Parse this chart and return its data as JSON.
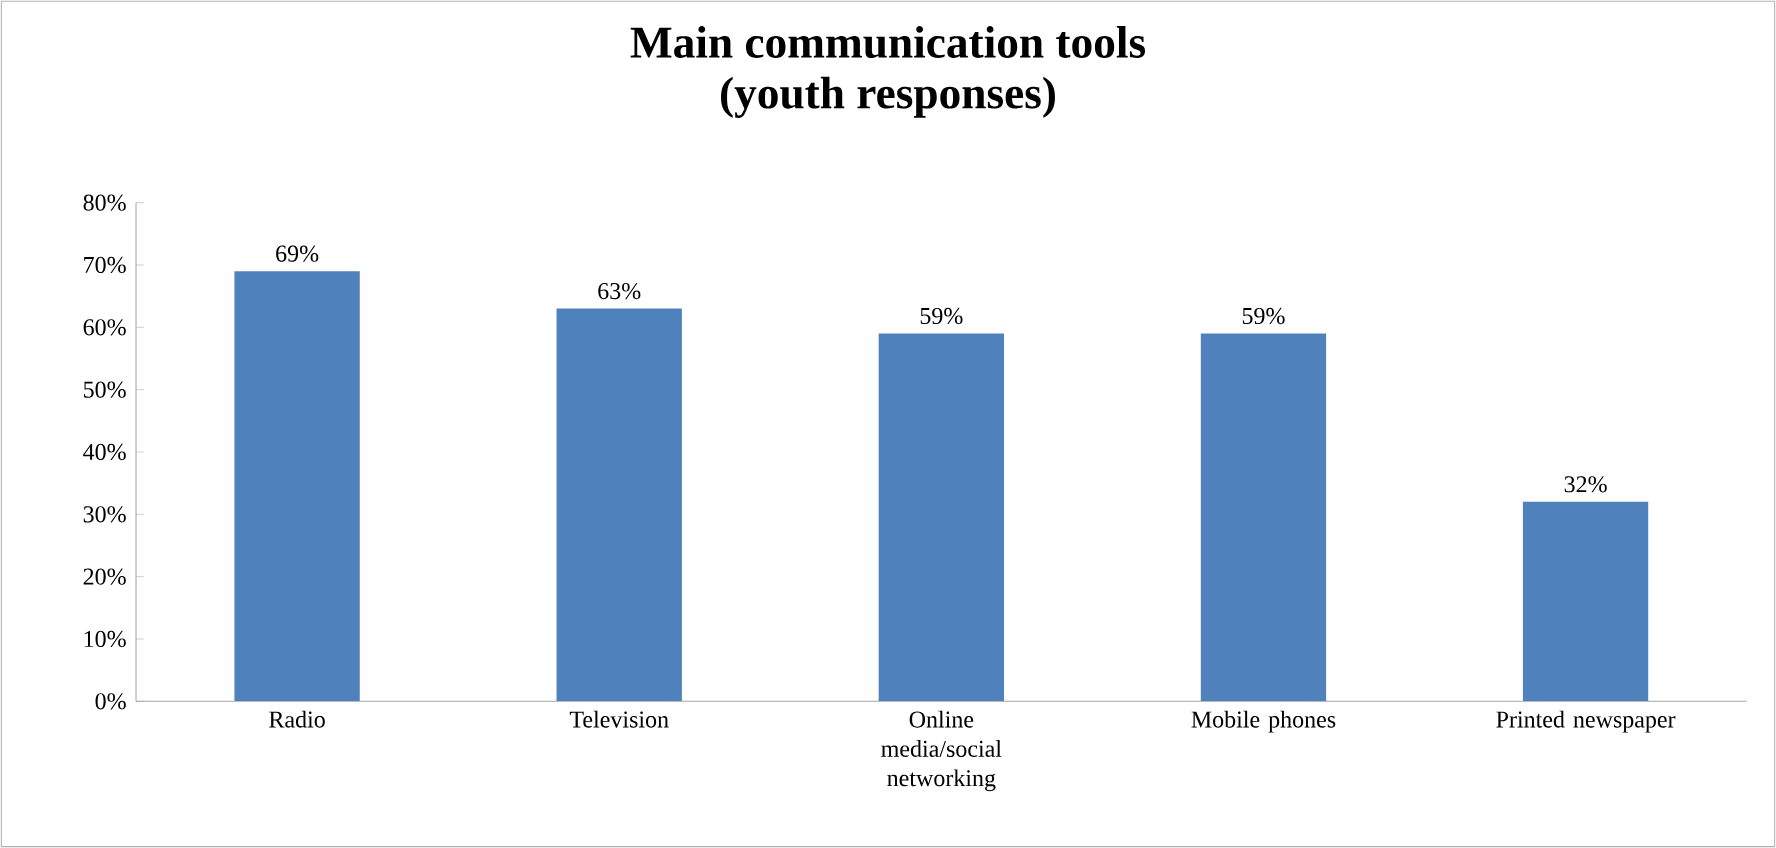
{
  "chart_data": {
    "type": "bar",
    "title": "Main communication tools\n(youth responses)",
    "categories": [
      "Radio",
      "Television",
      "Online media/social networking",
      "Mobile phones",
      "Printed newspaper"
    ],
    "values": [
      69,
      63,
      59,
      59,
      32
    ],
    "color": "#4f81bd",
    "value_labels": [
      "69%",
      "63%",
      "59%",
      "59%",
      "32%"
    ],
    "ylim": [
      0,
      80
    ],
    "yticks": [
      {
        "value": 0,
        "label": "0%"
      },
      {
        "value": 10,
        "label": "10%"
      },
      {
        "value": 20,
        "label": "20%"
      },
      {
        "value": 30,
        "label": "30%"
      },
      {
        "value": 40,
        "label": "40%"
      },
      {
        "value": 50,
        "label": "50%"
      },
      {
        "value": 60,
        "label": "60%"
      },
      {
        "value": 70,
        "label": "70%"
      },
      {
        "value": 80,
        "label": "80%"
      }
    ],
    "grid": false
  }
}
